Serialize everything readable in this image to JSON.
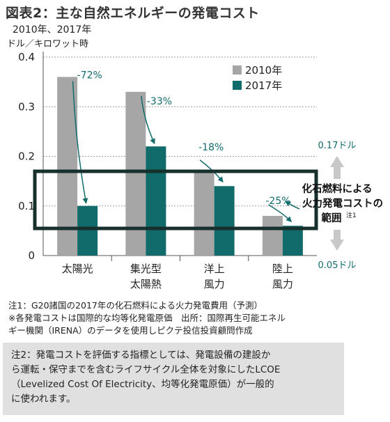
{
  "title": "図表2：主な自然エネルギーの発電コスト",
  "subtitle": "2010年、2017年",
  "unit": "ドル／キロワット時",
  "chart_data": {
    "type": "bar",
    "categories": [
      [
        "太陽光"
      ],
      [
        "集光型",
        "太陽熱"
      ],
      [
        "洋上",
        "風力"
      ],
      [
        "陸上",
        "風力"
      ]
    ],
    "series": [
      {
        "name": "2010年",
        "color": "#a6a6a6",
        "values": [
          0.36,
          0.33,
          0.17,
          0.08
        ]
      },
      {
        "name": "2017年",
        "color": "#126b6b",
        "values": [
          0.1,
          0.22,
          0.14,
          0.06
        ]
      }
    ],
    "changes": [
      "-72%",
      "-33%",
      "-18%",
      "-25%"
    ],
    "yticks": [
      "0",
      "0.1",
      "0.2",
      "0.3",
      "0.4"
    ],
    "ylim": [
      0,
      0.4
    ],
    "fossil_range": {
      "high_label": "0.17ドル",
      "low_label": "0.05ドル",
      "high": 0.17,
      "low": 0.05
    },
    "range_label": [
      "化石燃料による",
      "火力発電コストの",
      "範囲"
    ],
    "range_note": "注1",
    "legend_position": "top-right"
  },
  "notes": [
    "注1：G20諸国の2017年の化石燃料による火力発電費用（予測）",
    "※各発電コストは国際的な均等化発電原価　出所：国際再生可能エネル",
    "ギー機関（IRENA）のデータを使用しピクテ投信投資顧問作成"
  ],
  "note2": [
    "注2：発電コストを評価する指標としては、発電設備の建設か",
    "ら運転・保守までを含むライフサイクル全体を対象にしたLCOE",
    "（Levelized Cost Of Electricity、均等化発電原価）が一般的",
    "に使われます。"
  ]
}
